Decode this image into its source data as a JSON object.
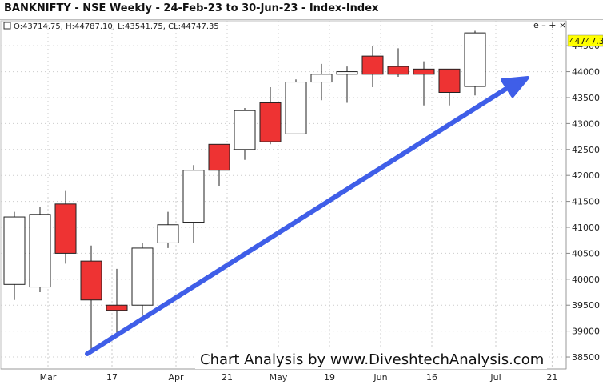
{
  "window": {
    "title": "BANKNIFTY - NSE Weekly - 24-Feb-23 to 30-Jun-23 - Index-Index"
  },
  "toolbar": {
    "controls_label": "e – + ×"
  },
  "ohlc_readout": "O:43714.75, H:44787.10, L:43541.75, CL:44747.35",
  "price_badge": "44747.3",
  "watermark": "Chart Analysis by www.DiveshtechAnalysis.com",
  "colors": {
    "bull_fill": "#ffffff",
    "bear_fill": "#ee3333",
    "candle_outline": "#222222",
    "arrow": "#3f5ee8",
    "badge": "#ffff00",
    "grid": "#cccccc"
  },
  "chart_data": {
    "type": "candlestick",
    "ylim": [
      38300,
      44950
    ],
    "y_ticks": [
      38500,
      39000,
      39500,
      40000,
      40500,
      41000,
      41500,
      42000,
      42500,
      43000,
      43500,
      44000,
      44500
    ],
    "x_tick_labels": [
      "Mar",
      "17",
      "Apr",
      "21",
      "May",
      "19",
      "Jun",
      "16",
      "Jul",
      "21"
    ],
    "grid": true,
    "candles": [
      {
        "o": 39900,
        "h": 41300,
        "l": 39600,
        "c": 41200
      },
      {
        "o": 39850,
        "h": 41400,
        "l": 39750,
        "c": 41250
      },
      {
        "o": 41450,
        "h": 41700,
        "l": 40300,
        "c": 40500
      },
      {
        "o": 40350,
        "h": 40650,
        "l": 38600,
        "c": 39600
      },
      {
        "o": 39500,
        "h": 40200,
        "l": 38950,
        "c": 39400
      },
      {
        "o": 39500,
        "h": 40700,
        "l": 39300,
        "c": 40600
      },
      {
        "o": 40700,
        "h": 41300,
        "l": 40600,
        "c": 41050
      },
      {
        "o": 41100,
        "h": 42200,
        "l": 40700,
        "c": 42100
      },
      {
        "o": 42600,
        "h": 42600,
        "l": 41800,
        "c": 42100
      },
      {
        "o": 42500,
        "h": 43300,
        "l": 42300,
        "c": 43250
      },
      {
        "o": 43400,
        "h": 43700,
        "l": 42600,
        "c": 42650
      },
      {
        "o": 42800,
        "h": 43850,
        "l": 42800,
        "c": 43800
      },
      {
        "o": 43800,
        "h": 44150,
        "l": 43450,
        "c": 43950
      },
      {
        "o": 43950,
        "h": 44100,
        "l": 43400,
        "c": 44000
      },
      {
        "o": 44300,
        "h": 44500,
        "l": 43700,
        "c": 43950
      },
      {
        "o": 44100,
        "h": 44450,
        "l": 43900,
        "c": 43950
      },
      {
        "o": 44050,
        "h": 44200,
        "l": 43350,
        "c": 43950
      },
      {
        "o": 44050,
        "h": 44050,
        "l": 43350,
        "c": 43600
      },
      {
        "o": 43714.75,
        "h": 44787.1,
        "l": 43541.75,
        "c": 44747.35
      }
    ]
  }
}
